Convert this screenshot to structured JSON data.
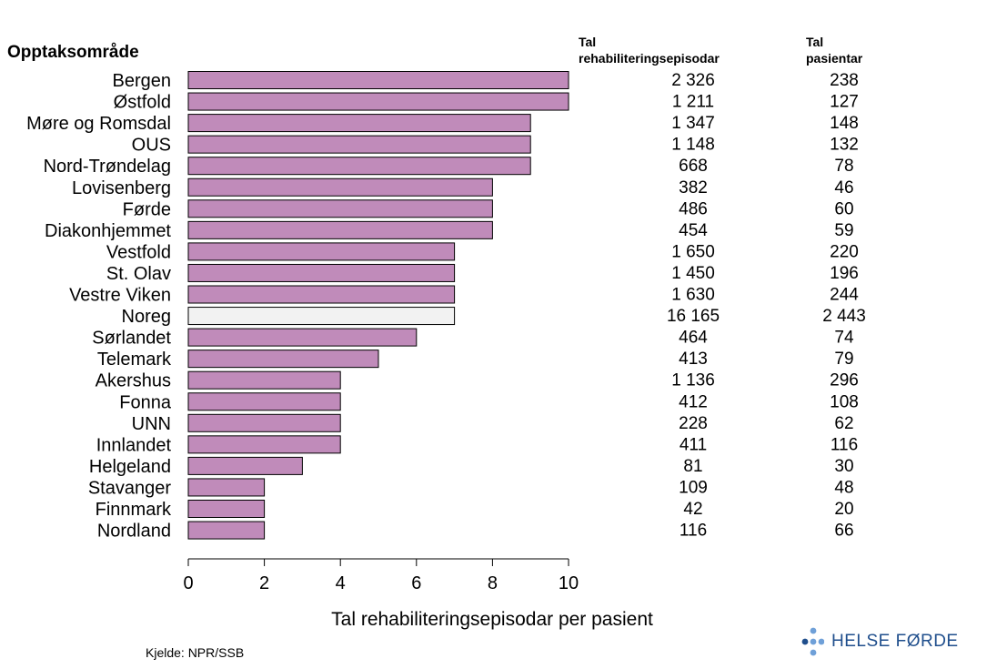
{
  "chart_data": {
    "type": "bar",
    "orientation": "horizontal",
    "category_header": "Opptaksområde",
    "categories": [
      "Bergen",
      "Østfold",
      "Møre og Romsdal",
      "OUS",
      "Nord-Trøndelag",
      "Lovisenberg",
      "Førde",
      "Diakonhjemmet",
      "Vestfold",
      "St. Olav",
      "Vestre Viken",
      "Noreg",
      "Sørlandet",
      "Telemark",
      "Akershus",
      "Fonna",
      "UNN",
      "Innlandet",
      "Helgeland",
      "Stavanger",
      "Finnmark",
      "Nordland"
    ],
    "values": [
      10,
      10,
      9,
      9,
      9,
      8,
      8,
      8,
      7,
      7,
      7,
      7,
      6,
      5,
      4,
      4,
      4,
      4,
      3,
      2,
      2,
      2
    ],
    "highlight_category": "Noreg",
    "bar_color": "#c08bba",
    "highlight_color": "#f2f2f2",
    "xlabel": "Tal rehabiliteringsepisodar per pasient",
    "xlim": [
      0,
      10
    ],
    "xticks": [
      "0",
      "2",
      "4",
      "6",
      "8",
      "10"
    ],
    "table_columns": [
      {
        "header_line1": "Tal",
        "header_line2": "rehabiliteringsepisodar",
        "values": [
          "2 326",
          "1 211",
          "1 347",
          "1 148",
          "668",
          "382",
          "486",
          "454",
          "1 650",
          "1 450",
          "1 630",
          "16 165",
          "464",
          "413",
          "1 136",
          "412",
          "228",
          "411",
          "81",
          "109",
          "42",
          "116"
        ]
      },
      {
        "header_line1": "Tal",
        "header_line2": "pasientar",
        "values": [
          "238",
          "127",
          "148",
          "132",
          "78",
          "46",
          "60",
          "59",
          "220",
          "196",
          "244",
          "2 443",
          "74",
          "79",
          "296",
          "108",
          "62",
          "116",
          "30",
          "48",
          "20",
          "66"
        ]
      }
    ]
  },
  "source": "Kjelde: NPR/SSB",
  "logo": {
    "text": "HELSE FØRDE",
    "color": "#1f4e8c",
    "dot_color": "#6fa0d8"
  }
}
